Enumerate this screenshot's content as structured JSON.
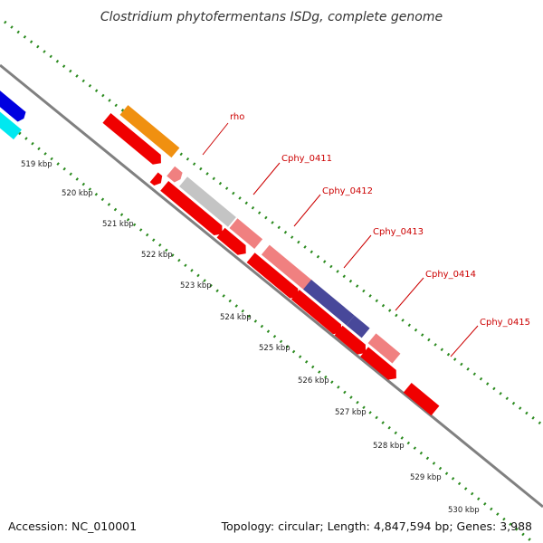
{
  "title": "Clostridium phytofermentans ISDg, complete genome",
  "accession": "Accession: NC_010001",
  "topology": "Topology: circular; Length: 4,847,594 bp; Genes: 3,988",
  "kbp_ticks": [
    "519 kbp",
    "520 kbp",
    "521 kbp",
    "522 kbp",
    "523 kbp",
    "524 kbp",
    "525 kbp",
    "526 kbp",
    "527 kbp",
    "528 kbp",
    "529 kbp",
    "530 kbp"
  ],
  "gene_labels": [
    "rho",
    "Cphy_0411",
    "Cphy_0412",
    "Cphy_0413",
    "Cphy_0414",
    "Cphy_0415"
  ],
  "colors": {
    "label": "#cc0000",
    "backbone": "#808080",
    "dots": "#2a8a1e",
    "blue": "#0000e0",
    "cyan": "#00e8f0",
    "gray": "#c4c4c4",
    "orange": "#f09010",
    "red": "#f00000",
    "pink": "#f08080",
    "navy": "#48489a"
  }
}
